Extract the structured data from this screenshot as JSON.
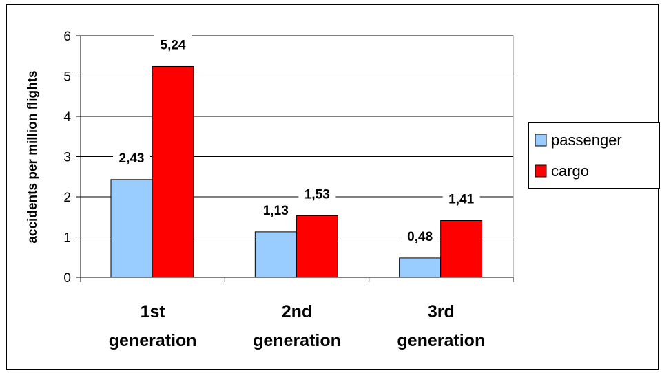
{
  "chart_data": {
    "type": "bar",
    "categories": [
      [
        "1st",
        "generation"
      ],
      [
        "2nd",
        "generation"
      ],
      [
        "3rd",
        "generation"
      ]
    ],
    "series": [
      {
        "name": "passenger",
        "values": [
          2.43,
          1.13,
          0.48
        ],
        "labels": [
          "2,43",
          "1,13",
          "0,48"
        ],
        "color": "#99ccff"
      },
      {
        "name": "cargo",
        "values": [
          5.24,
          1.53,
          1.41
        ],
        "labels": [
          "5,24",
          "1,53",
          "1,41"
        ],
        "color": "#ff0000"
      }
    ],
    "title": "",
    "xlabel": "",
    "ylabel": "accidents per million flights",
    "ylim": [
      0,
      6
    ],
    "yticks": [
      "0",
      "1",
      "2",
      "3",
      "4",
      "5",
      "6"
    ],
    "grid": true,
    "legend_position": "right",
    "plot_background": "#ffffff",
    "grid_color": "#000000"
  }
}
